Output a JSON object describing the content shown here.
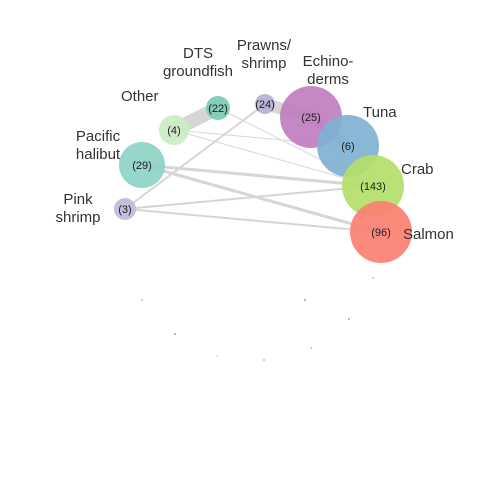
{
  "network": {
    "nodes": [
      {
        "id": "dts",
        "label_lines": [
          "DTS",
          "groundfish"
        ],
        "count": "(22)",
        "value": 22,
        "color": "#7cc9b4"
      },
      {
        "id": "prawns",
        "label_lines": [
          "Prawns/",
          "shrimp"
        ],
        "count": "(24)",
        "value": 24,
        "color": "#b6b0d7"
      },
      {
        "id": "echinoderms",
        "label_lines": [
          "Echino-",
          "derms"
        ],
        "count": "(25)",
        "value": 25,
        "color": "#bf7fbf"
      },
      {
        "id": "tuna",
        "label_lines": [
          "Tuna"
        ],
        "count": "(6)",
        "value": 6,
        "color": "#80b1d3"
      },
      {
        "id": "crab",
        "label_lines": [
          "Crab"
        ],
        "count": "(143)",
        "value": 143,
        "color": "#b3de69"
      },
      {
        "id": "salmon",
        "label_lines": [
          "Salmon"
        ],
        "count": "(96)",
        "value": 96,
        "color": "#fb8072"
      },
      {
        "id": "other",
        "label_lines": [
          "Other"
        ],
        "count": "(4)",
        "value": 4,
        "color": "#ccebc5"
      },
      {
        "id": "halibut",
        "label_lines": [
          "Pacific",
          "halibut"
        ],
        "count": "(29)",
        "value": 29,
        "color": "#8dd3c7"
      },
      {
        "id": "pink",
        "label_lines": [
          "Pink",
          "shrimp"
        ],
        "count": "(3)",
        "value": 3,
        "color": "#bebada"
      }
    ],
    "edges": [
      {
        "from": "other",
        "to": "dts"
      },
      {
        "from": "prawns",
        "to": "echinoderms"
      },
      {
        "from": "echinoderms",
        "to": "tuna"
      },
      {
        "from": "halibut",
        "to": "crab"
      },
      {
        "from": "halibut",
        "to": "salmon"
      },
      {
        "from": "pink",
        "to": "crab"
      },
      {
        "from": "pink",
        "to": "prawns"
      },
      {
        "from": "other",
        "to": "tuna"
      },
      {
        "from": "other",
        "to": "crab"
      },
      {
        "from": "dts",
        "to": "crab"
      },
      {
        "from": "halibut",
        "to": "salmon"
      },
      {
        "from": "pink",
        "to": "salmon"
      }
    ],
    "dots": [
      {
        "id": "dot-1",
        "color": "#8dd3c7"
      },
      {
        "id": "dot-2",
        "color": "#b3de69"
      },
      {
        "id": "dot-3",
        "color": "#bf7fbf"
      },
      {
        "id": "dot-4",
        "color": "#ccebc5"
      },
      {
        "id": "dot-5",
        "color": "#fdb462"
      },
      {
        "id": "dot-6",
        "color": "#80b1d3"
      },
      {
        "id": "dot-7",
        "color": "#8dd3c7"
      },
      {
        "id": "dot-8",
        "color": "#fb8072"
      }
    ],
    "edge_color": "#d6d6d6"
  }
}
